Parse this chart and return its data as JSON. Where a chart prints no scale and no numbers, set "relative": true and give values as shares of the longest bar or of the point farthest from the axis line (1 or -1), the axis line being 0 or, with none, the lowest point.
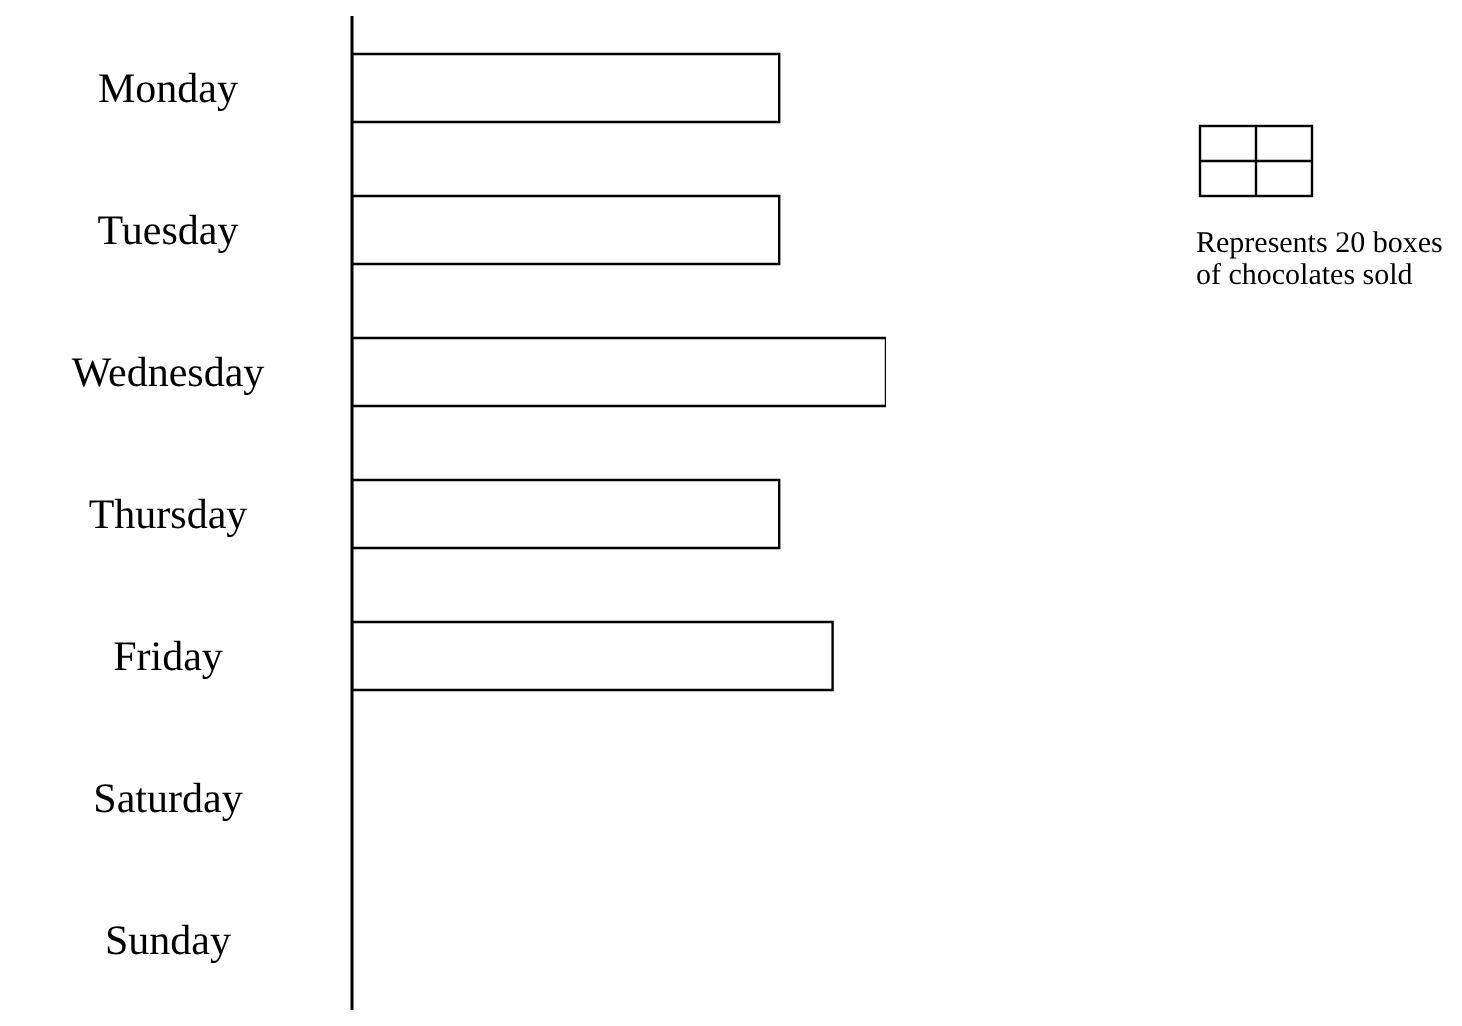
{
  "chart_data": {
    "type": "bar",
    "orientation": "horizontal",
    "relative": true,
    "categories": [
      "Monday",
      "Tuesday",
      "Wednesday",
      "Thursday",
      "Friday",
      "Saturday",
      "Sunday"
    ],
    "values": [
      0.8,
      0.8,
      1,
      0.8,
      0.9,
      null,
      null
    ],
    "color": "#ffffff",
    "annotations": [
      "Represents 20 boxes of chocolates sold"
    ]
  }
}
